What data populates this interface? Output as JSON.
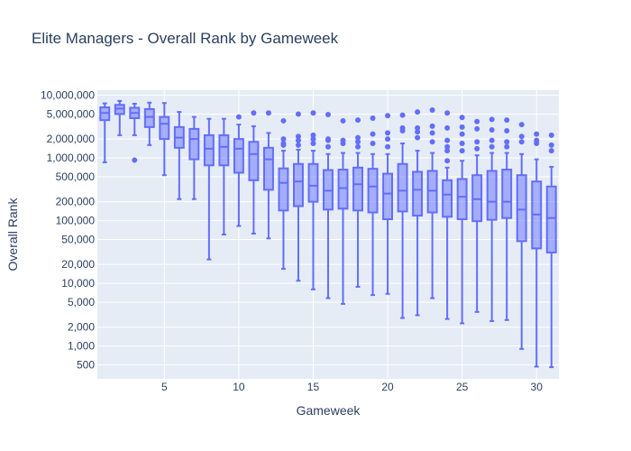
{
  "chart_data": {
    "type": "box",
    "title": "Elite Managers - Overall Rank by Gameweek",
    "xlabel": "Gameweek",
    "ylabel": "Overall Rank",
    "y_scale": "log",
    "ylim": [
      300,
      12000000
    ],
    "xlim": [
      0.5,
      31.5
    ],
    "x_ticks": [
      5,
      10,
      15,
      20,
      25,
      30
    ],
    "y_ticks": [
      {
        "value": 500,
        "label": "500"
      },
      {
        "value": 1000,
        "label": "1,000"
      },
      {
        "value": 2000,
        "label": "2,000"
      },
      {
        "value": 5000,
        "label": "5,000"
      },
      {
        "value": 10000,
        "label": "10,000"
      },
      {
        "value": 20000,
        "label": "20,000"
      },
      {
        "value": 50000,
        "label": "50,000"
      },
      {
        "value": 100000,
        "label": "100,000"
      },
      {
        "value": 200000,
        "label": "200,000"
      },
      {
        "value": 500000,
        "label": "500,000"
      },
      {
        "value": 1000000,
        "label": "1,000,000"
      },
      {
        "value": 2000000,
        "label": "2,000,000"
      },
      {
        "value": 5000000,
        "label": "5,000,000"
      },
      {
        "value": 10000000,
        "label": "10,000,000"
      }
    ],
    "grid": true,
    "box_color": "#636efa",
    "plot_bg": "#e5ecf6",
    "boxes": [
      {
        "x": 1,
        "min": 850000,
        "q1": 4000000,
        "median": 5200000,
        "q3": 6400000,
        "max": 7400000,
        "outliers": []
      },
      {
        "x": 2,
        "min": 2300000,
        "q1": 5000000,
        "median": 6100000,
        "q3": 7000000,
        "max": 8100000,
        "outliers": []
      },
      {
        "x": 3,
        "min": 2300000,
        "q1": 4300000,
        "median": 5200000,
        "q3": 6300000,
        "max": 7300000,
        "outliers": [
          920000
        ]
      },
      {
        "x": 4,
        "min": 1600000,
        "q1": 3100000,
        "median": 4500000,
        "q3": 6000000,
        "max": 7600000,
        "outliers": []
      },
      {
        "x": 5,
        "min": 530000,
        "q1": 2000000,
        "median": 3500000,
        "q3": 4500000,
        "max": 7500000,
        "outliers": []
      },
      {
        "x": 6,
        "min": 220000,
        "q1": 1450000,
        "median": 2100000,
        "q3": 3100000,
        "max": 5400000,
        "outliers": []
      },
      {
        "x": 7,
        "min": 220000,
        "q1": 950000,
        "median": 2000000,
        "q3": 2900000,
        "max": 4500000,
        "outliers": []
      },
      {
        "x": 8,
        "min": 24000,
        "q1": 760000,
        "median": 1400000,
        "q3": 2300000,
        "max": 4200000,
        "outliers": []
      },
      {
        "x": 9,
        "min": 60000,
        "q1": 760000,
        "median": 1500000,
        "q3": 2300000,
        "max": 4200000,
        "outliers": []
      },
      {
        "x": 10,
        "min": 82000,
        "q1": 580000,
        "median": 1400000,
        "q3": 2000000,
        "max": 3400000,
        "outliers": [
          4500000
        ]
      },
      {
        "x": 11,
        "min": 62000,
        "q1": 440000,
        "median": 1150000,
        "q3": 1800000,
        "max": 3200000,
        "outliers": [
          5200000
        ]
      },
      {
        "x": 12,
        "min": 52000,
        "q1": 310000,
        "median": 950000,
        "q3": 1450000,
        "max": 2500000,
        "outliers": [
          5200000
        ]
      },
      {
        "x": 13,
        "min": 17000,
        "q1": 145000,
        "median": 400000,
        "q3": 680000,
        "max": 1300000,
        "outliers": [
          1600000,
          1700000,
          2000000,
          3900000
        ]
      },
      {
        "x": 14,
        "min": 11000,
        "q1": 170000,
        "median": 420000,
        "q3": 800000,
        "max": 1350000,
        "outliers": [
          1600000,
          1900000,
          2200000,
          5000000
        ]
      },
      {
        "x": 15,
        "min": 8000,
        "q1": 200000,
        "median": 360000,
        "q3": 800000,
        "max": 1300000,
        "outliers": [
          1700000,
          2000000,
          2300000,
          5200000
        ]
      },
      {
        "x": 16,
        "min": 5800,
        "q1": 150000,
        "median": 300000,
        "q3": 640000,
        "max": 1150000,
        "outliers": [
          1500000,
          1900000,
          2000000,
          4900000
        ]
      },
      {
        "x": 17,
        "min": 4700,
        "q1": 155000,
        "median": 330000,
        "q3": 650000,
        "max": 1200000,
        "outliers": [
          1700000,
          1900000,
          3900000
        ]
      },
      {
        "x": 18,
        "min": 8800,
        "q1": 145000,
        "median": 380000,
        "q3": 700000,
        "max": 1200000,
        "outliers": [
          1500000,
          1800000,
          2100000,
          4000000
        ]
      },
      {
        "x": 19,
        "min": 6500,
        "q1": 135000,
        "median": 350000,
        "q3": 670000,
        "max": 1150000,
        "outliers": [
          1700000,
          2400000,
          4300000
        ]
      },
      {
        "x": 20,
        "min": 6800,
        "q1": 105000,
        "median": 270000,
        "q3": 560000,
        "max": 1150000,
        "outliers": [
          1500000,
          2000000,
          2500000,
          4700000
        ]
      },
      {
        "x": 21,
        "min": 2800,
        "q1": 140000,
        "median": 300000,
        "q3": 800000,
        "max": 1700000,
        "outliers": [
          2700000,
          3000000,
          4800000
        ]
      },
      {
        "x": 22,
        "min": 3100,
        "q1": 120000,
        "median": 310000,
        "q3": 600000,
        "max": 1300000,
        "outliers": [
          2100000,
          2600000,
          3000000,
          5400000
        ]
      },
      {
        "x": 23,
        "min": 5800,
        "q1": 135000,
        "median": 300000,
        "q3": 620000,
        "max": 1200000,
        "outliers": [
          1800000,
          2500000,
          3200000,
          5800000
        ]
      },
      {
        "x": 24,
        "min": 2700,
        "q1": 115000,
        "median": 260000,
        "q3": 440000,
        "max": 700000,
        "outliers": [
          900000,
          1300000,
          1500000,
          1900000,
          3000000,
          5200000
        ]
      },
      {
        "x": 25,
        "min": 2300,
        "q1": 105000,
        "median": 240000,
        "q3": 460000,
        "max": 900000,
        "outliers": [
          1300000,
          1700000,
          2400000,
          3100000,
          4400000
        ]
      },
      {
        "x": 26,
        "min": 3500,
        "q1": 98000,
        "median": 220000,
        "q3": 530000,
        "max": 1100000,
        "outliers": [
          1400000,
          1800000,
          2900000,
          3800000
        ]
      },
      {
        "x": 27,
        "min": 2500,
        "q1": 103000,
        "median": 200000,
        "q3": 620000,
        "max": 1200000,
        "outliers": [
          1500000,
          1900000,
          2800000,
          4100000
        ]
      },
      {
        "x": 28,
        "min": 2600,
        "q1": 110000,
        "median": 200000,
        "q3": 650000,
        "max": 1200000,
        "outliers": [
          1500000,
          1800000,
          2700000,
          4000000
        ]
      },
      {
        "x": 29,
        "min": 900,
        "q1": 47000,
        "median": 150000,
        "q3": 530000,
        "max": 1150000,
        "outliers": [
          1800000,
          2200000,
          3400000
        ]
      },
      {
        "x": 30,
        "min": 470,
        "q1": 36000,
        "median": 125000,
        "q3": 420000,
        "max": 950000,
        "outliers": [
          1700000,
          1900000,
          2400000
        ]
      },
      {
        "x": 31,
        "min": 460,
        "q1": 31000,
        "median": 110000,
        "q3": 350000,
        "max": 720000,
        "outliers": [
          1300000,
          1600000,
          2300000
        ]
      }
    ]
  }
}
